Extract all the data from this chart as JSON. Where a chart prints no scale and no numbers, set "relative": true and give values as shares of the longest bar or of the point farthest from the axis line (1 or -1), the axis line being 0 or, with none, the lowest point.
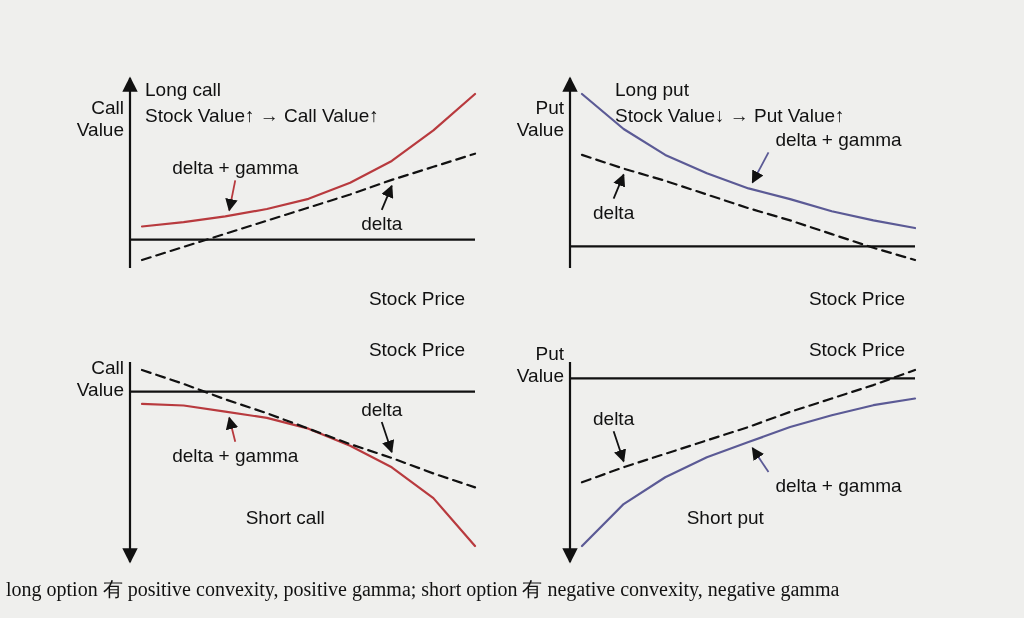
{
  "chart_data": [
    {
      "type": "line",
      "relative": true,
      "title": "Long call",
      "subtitle": "Stock Value↑ → Call Value↑",
      "xlabel": "Stock Price",
      "ylabel": "Call Value",
      "categories": [
        null,
        null,
        null,
        null,
        null,
        null,
        null,
        null,
        null
      ],
      "series": [
        {
          "name": "delta + gamma",
          "color": "#b83a3e",
          "line_style": "solid",
          "values": [
            0.09,
            0.12,
            0.16,
            0.21,
            0.28,
            0.39,
            0.54,
            0.75,
            1
          ]
        },
        {
          "name": "delta",
          "color": "#111111",
          "line_style": "dashed",
          "values": [
            -0.14,
            -0.05,
            0.04,
            0.13,
            0.22,
            0.31,
            0.41,
            0.5,
            0.59
          ]
        }
      ]
    },
    {
      "type": "line",
      "relative": true,
      "title": "Long put",
      "subtitle": "Stock Value↓ → Put Value↑",
      "xlabel": "Stock Price",
      "ylabel": "Put Value",
      "categories": [
        null,
        null,
        null,
        null,
        null,
        null,
        null,
        null,
        null
      ],
      "series": [
        {
          "name": "delta + gamma",
          "color": "#5b5a95",
          "line_style": "solid",
          "values": [
            1,
            0.77,
            0.6,
            0.48,
            0.38,
            0.31,
            0.23,
            0.17,
            0.12
          ]
        },
        {
          "name": "delta",
          "color": "#111111",
          "line_style": "dashed",
          "values": [
            0.6,
            0.51,
            0.43,
            0.34,
            0.25,
            0.17,
            0.08,
            -0.01,
            -0.09
          ]
        }
      ]
    },
    {
      "type": "line",
      "relative": true,
      "title": "Short call",
      "xlabel": "Stock Price",
      "ylabel": "Call Value",
      "categories": [
        null,
        null,
        null,
        null,
        null,
        null,
        null,
        null,
        null
      ],
      "series": [
        {
          "name": "delta + gamma",
          "color": "#b83a3e",
          "line_style": "solid",
          "values": [
            -0.08,
            -0.09,
            -0.13,
            -0.17,
            -0.24,
            -0.35,
            -0.49,
            -0.69,
            -1
          ]
        },
        {
          "name": "delta",
          "color": "#111111",
          "line_style": "dashed",
          "values": [
            0.14,
            0.05,
            -0.05,
            -0.14,
            -0.24,
            -0.34,
            -0.43,
            -0.53,
            -0.62
          ]
        }
      ]
    },
    {
      "type": "line",
      "relative": true,
      "title": "Short put",
      "xlabel": "Stock Price",
      "ylabel": "Put Value",
      "categories": [
        null,
        null,
        null,
        null,
        null,
        null,
        null,
        null,
        null
      ],
      "series": [
        {
          "name": "delta + gamma",
          "color": "#5b5a95",
          "line_style": "solid",
          "values": [
            -1,
            -0.75,
            -0.59,
            -0.47,
            -0.38,
            -0.29,
            -0.22,
            -0.16,
            -0.12
          ]
        },
        {
          "name": "delta",
          "color": "#111111",
          "line_style": "dashed",
          "values": [
            -0.62,
            -0.53,
            -0.45,
            -0.37,
            -0.29,
            -0.2,
            -0.12,
            -0.04,
            0.05
          ]
        }
      ],
      "annotations": [
        "long option 有 positive convexity, positive gamma; short option 有 negative convexity, negative gamma"
      ]
    }
  ]
}
